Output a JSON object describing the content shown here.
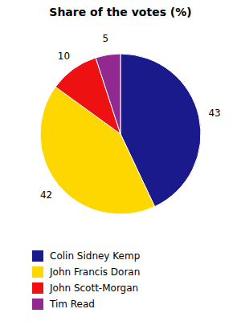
{
  "chart_data": {
    "type": "pie",
    "title": "Share of the votes (%)",
    "categories": [
      "Colin Sidney Kemp",
      "John Francis Doran",
      "John Scott-Morgan",
      "Tim Read"
    ],
    "values": [
      43,
      42,
      10,
      5
    ],
    "colors": [
      "#1a1a8c",
      "#ffd700",
      "#ee1111",
      "#912991"
    ],
    "data_labels": true,
    "legend": "bottom"
  }
}
